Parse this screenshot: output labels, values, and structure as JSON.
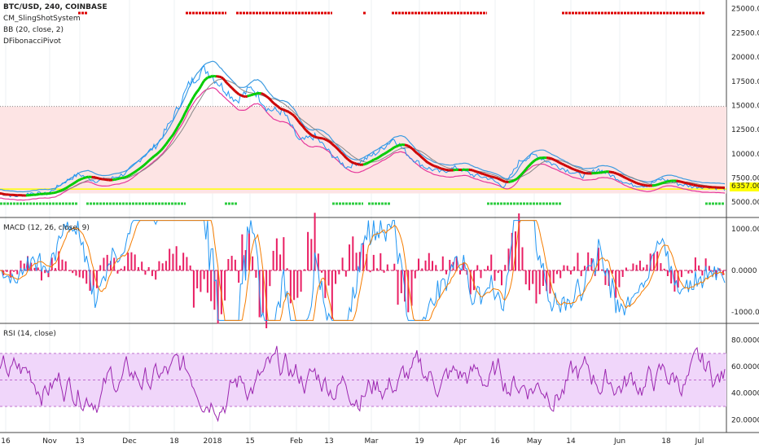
{
  "header": {
    "title": "BTC/USD, 240, COINBASE",
    "indicators": [
      "CM_SlingShotSystem",
      "BB (20, close, 2)",
      "DFibonacciPivot"
    ]
  },
  "panes": {
    "macd": {
      "label": "MACD (12, 26, close, 9)"
    },
    "rsi": {
      "label": "RSI (14, close)"
    }
  },
  "last_price": "6357.00",
  "colors": {
    "price": "#2196f3",
    "bb_upper": "#3d9be0",
    "bb_lower": "#e6399b",
    "ema_fast": "#00cc00",
    "ema_slow": "#cc0000",
    "fib_zone": "#fde4e4",
    "yellow": "#ffff00",
    "rsi": "#9c27b0",
    "rsi_band": "#f0d6fa",
    "macd_hist": "#e91e63"
  },
  "chart_data": [
    {
      "type": "line",
      "pane": "price",
      "y_ticks": [
        "25000.00",
        "22500.00",
        "20000.00",
        "17500.00",
        "15000.00",
        "12500.00",
        "10000.00",
        "7500.00",
        "5000.00"
      ],
      "ylim": [
        3500,
        25900
      ],
      "x_tick_labels": [
        "16",
        "Nov",
        "13",
        "Dec",
        "18",
        "2018",
        "15",
        "Feb",
        "13",
        "Mar",
        "19",
        "Apr",
        "16",
        "May",
        "14",
        "Jun",
        "18",
        "Jul"
      ],
      "fib_zone": [
        5900,
        14900
      ],
      "yellow_line": 6357,
      "series": [
        {
          "values": [
            5900,
            5600,
            5950,
            5850,
            7000,
            7900,
            7200,
            7400,
            8000,
            9600,
            11000,
            13800,
            17200,
            18800,
            17100,
            15500,
            16900,
            14600,
            14300,
            11300,
            11800,
            10000,
            8600,
            9300,
            10200,
            11600,
            9700,
            8600,
            8100,
            8600,
            7800,
            7500,
            6600,
            9300,
            9900,
            9000,
            8300,
            7700,
            8400,
            7600,
            6800,
            6700,
            7400,
            6900,
            6600,
            6600,
            6357
          ]
        }
      ]
    },
    {
      "type": "line",
      "pane": "macd",
      "y_ticks": [
        "1000.0000",
        "0.0000",
        "-1000.0000"
      ],
      "ylim": [
        -1250,
        1250
      ]
    },
    {
      "type": "line",
      "pane": "rsi",
      "y_ticks": [
        "80.0000",
        "60.0000",
        "40.0000",
        "20.0000"
      ],
      "ylim": [
        11,
        92
      ],
      "band": [
        30,
        70
      ]
    }
  ]
}
